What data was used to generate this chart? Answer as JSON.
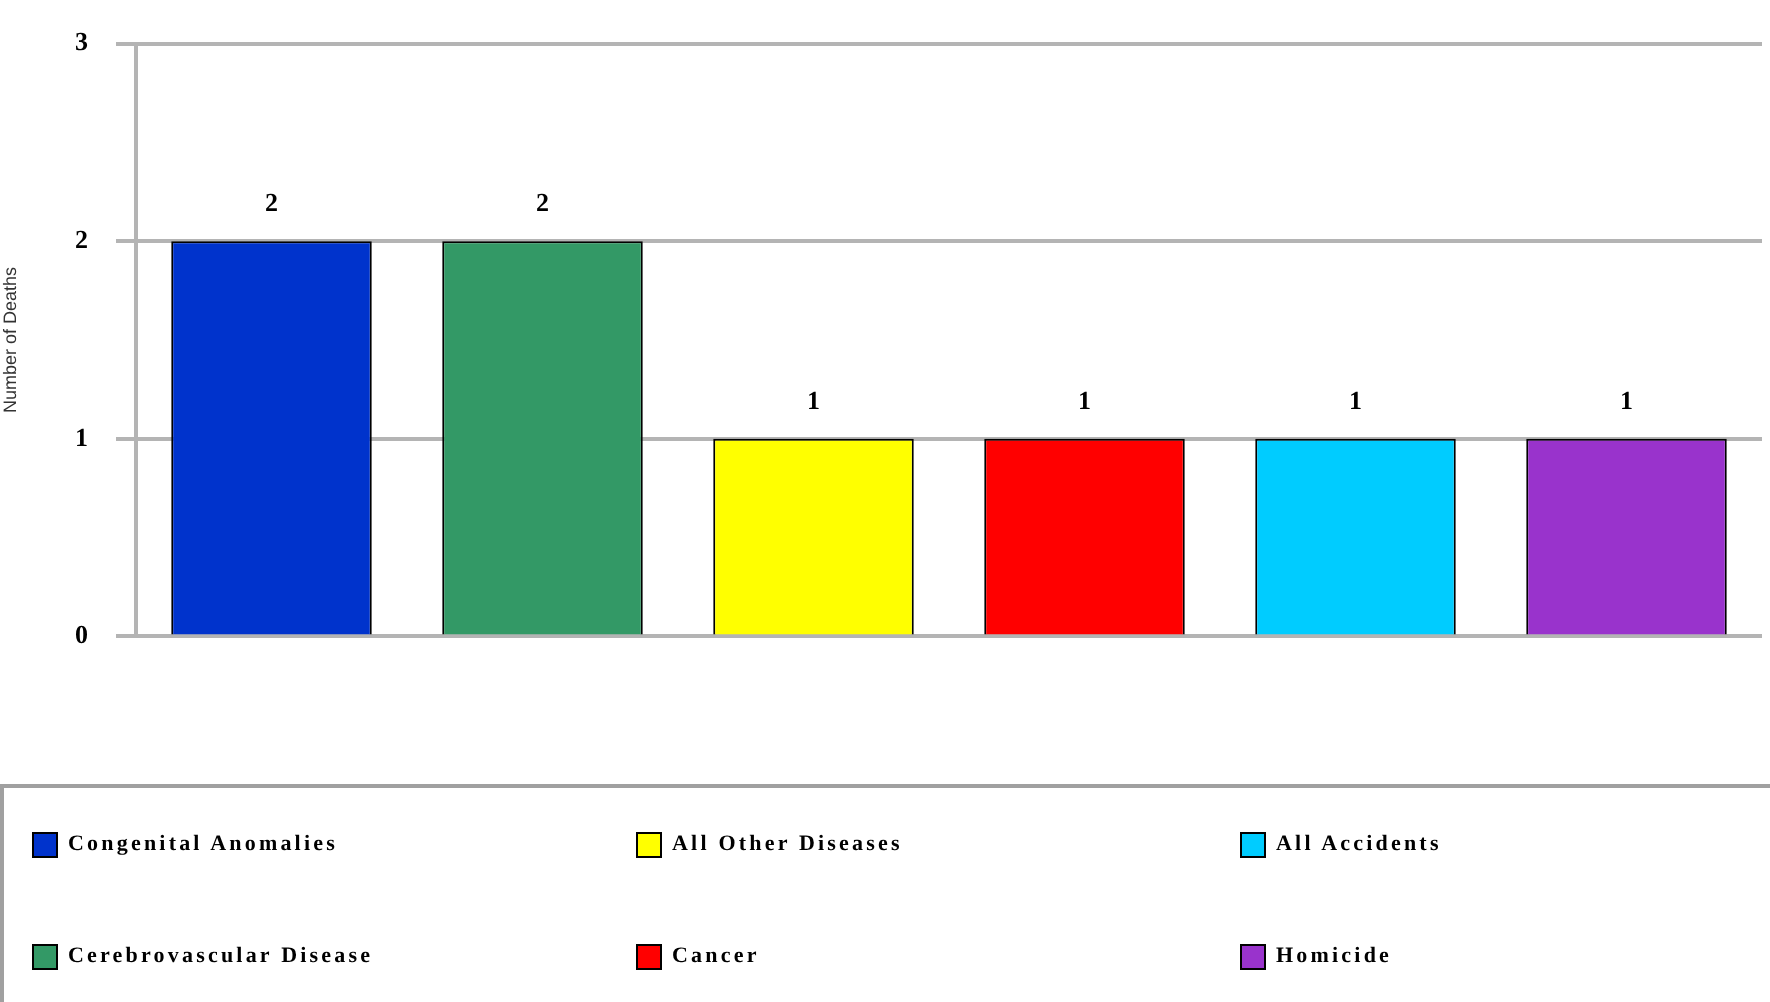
{
  "chart_data": {
    "type": "bar",
    "ylabel": "Number of Deaths",
    "categories": [
      null,
      null,
      null,
      null,
      null,
      null
    ],
    "series": [
      {
        "name": "Congenital Anomalies",
        "color": "#0033cc",
        "values": [
          2,
          null,
          null,
          null,
          null,
          null
        ]
      },
      {
        "name": "Cerebrovascular Disease",
        "color": "#339966",
        "values": [
          null,
          2,
          null,
          null,
          null,
          null
        ]
      },
      {
        "name": "All Other Diseases",
        "color": "#ffff00",
        "values": [
          null,
          null,
          1,
          null,
          null,
          null
        ]
      },
      {
        "name": "Cancer",
        "color": "#ff0000",
        "values": [
          null,
          null,
          null,
          1,
          null,
          null
        ]
      },
      {
        "name": "All Accidents",
        "color": "#00ccff",
        "values": [
          null,
          null,
          null,
          null,
          1,
          null
        ]
      },
      {
        "name": "Homicide",
        "color": "#9933cc",
        "values": [
          null,
          null,
          null,
          null,
          null,
          1
        ]
      }
    ],
    "ylim": [
      0,
      3
    ],
    "yticks": [
      0,
      1,
      2,
      3
    ],
    "grid": "y",
    "legend": "bottom",
    "tick_labels": "y",
    "data_labels": true
  }
}
